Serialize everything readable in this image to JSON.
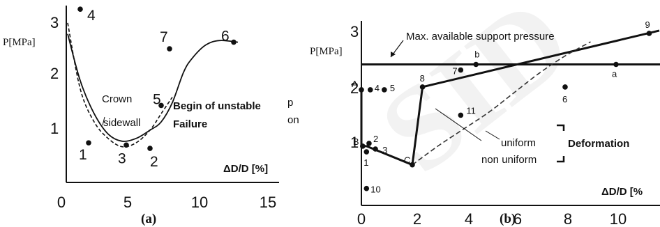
{
  "watermark": {
    "text": "SID",
    "color": "#f0f0f0"
  },
  "chart_data": [
    {
      "type": "scatter",
      "panel_label": "(a)",
      "ylabel": "P[MPa]",
      "xlabel": "ΔD/D [%]",
      "xlim": [
        0,
        15
      ],
      "ylim": [
        0,
        3.3
      ],
      "xticks": [
        "0",
        "5",
        "10",
        "15"
      ],
      "yticks": [
        "1",
        "2",
        "3"
      ],
      "points": [
        {
          "label": "4",
          "x": 1.0,
          "y": 3.15
        },
        {
          "label": "1",
          "x": 1.6,
          "y": 0.72
        },
        {
          "label": "3",
          "x": 4.3,
          "y": 0.68
        },
        {
          "label": "2",
          "x": 6.0,
          "y": 0.62
        },
        {
          "label": "5",
          "x": 6.8,
          "y": 1.4
        },
        {
          "label": "7",
          "x": 7.4,
          "y": 2.43
        },
        {
          "label": "6",
          "x": 12.0,
          "y": 2.55
        }
      ],
      "curves": [
        {
          "name": "Crown",
          "style": "solid",
          "x": [
            0.1,
            1.0,
            2.0,
            3.0,
            4.0,
            5.0,
            6.0,
            6.8,
            7.6,
            8.4,
            9.0,
            10.0,
            11.0,
            12.3
          ],
          "y": [
            2.7,
            1.85,
            1.25,
            0.88,
            0.75,
            0.8,
            0.95,
            1.1,
            1.45,
            2.0,
            2.25,
            2.5,
            2.58,
            2.55
          ]
        },
        {
          "name": "sidewall",
          "style": "dashed",
          "x": [
            0.1,
            1.0,
            2.0,
            3.0,
            4.0,
            5.0,
            6.0,
            6.8,
            7.6
          ],
          "y": [
            2.9,
            1.7,
            1.1,
            0.8,
            0.65,
            0.72,
            0.95,
            1.25,
            1.55
          ]
        }
      ],
      "curve_labels": [
        "Crown",
        "sidewall"
      ],
      "annotations": [
        "Begin of unstable",
        "Failure"
      ],
      "truncated_text": [
        "p",
        "on"
      ]
    },
    {
      "type": "line",
      "panel_label": "(b)",
      "ylabel": "P[MPa]",
      "xlabel": "ΔD/D [%",
      "xlim": [
        0,
        11.7
      ],
      "ylim": [
        0,
        3.3
      ],
      "xticks": [
        "0",
        "2",
        "4",
        "6",
        "8",
        "10"
      ],
      "yticks": [
        "1",
        "2",
        "3"
      ],
      "support_pressure": {
        "label": "Max. available support pressure",
        "y": 2.5
      },
      "points": [
        {
          "label": "A",
          "x": 0.0,
          "y": 2.05
        },
        {
          "label": "4",
          "x": 0.35,
          "y": 2.05
        },
        {
          "label": "5",
          "x": 0.9,
          "y": 2.05
        },
        {
          "label": "B",
          "x": 0.05,
          "y": 1.05
        },
        {
          "label": "2",
          "x": 0.3,
          "y": 1.1
        },
        {
          "label": "3",
          "x": 0.55,
          "y": 1.0
        },
        {
          "label": "1",
          "x": 0.2,
          "y": 0.95
        },
        {
          "label": "10",
          "x": 0.2,
          "y": 0.3
        },
        {
          "label": "C",
          "x": 2.0,
          "y": 0.72
        },
        {
          "label": "8",
          "x": 2.4,
          "y": 2.1
        },
        {
          "label": "7",
          "x": 3.9,
          "y": 2.4
        },
        {
          "label": "b",
          "x": 4.5,
          "y": 2.5
        },
        {
          "label": "11",
          "x": 3.9,
          "y": 1.6
        },
        {
          "label": "6",
          "x": 8.0,
          "y": 2.1
        },
        {
          "label": "a",
          "x": 10.0,
          "y": 2.5
        },
        {
          "label": "9",
          "x": 11.3,
          "y": 3.05
        }
      ],
      "non_uniform_path": {
        "x": [
          0.0,
          0.0,
          0.2,
          2.0,
          2.4,
          11.7
        ],
        "y": [
          2.05,
          1.05,
          1.05,
          0.72,
          2.1,
          3.1
        ]
      },
      "uniform_curve": {
        "x": [
          2.0,
          3.0,
          4.0,
          5.0,
          6.0,
          7.0,
          8.0,
          9.0
        ],
        "y": [
          0.72,
          1.05,
          1.35,
          1.65,
          2.0,
          2.35,
          2.65,
          2.9
        ]
      },
      "curve_labels": [
        "uniform",
        "non uniform"
      ],
      "bracket_label": "Deformation"
    }
  ],
  "captions": [
    "(a)",
    "(b)"
  ]
}
